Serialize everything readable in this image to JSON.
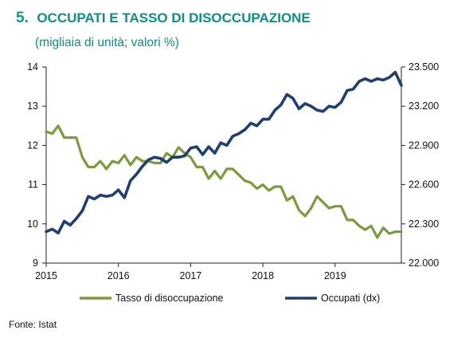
{
  "title_number": "5.",
  "title": "OCCUPATI E TASSO DI DISOCCUPAZIONE",
  "subtitle": "(migliaia di unità; valori %)",
  "source": "Fonte: Istat",
  "colors": {
    "unemployment": "#7a9a3c",
    "employed": "#1f3f73",
    "title": "#0b8f86"
  },
  "chart_data": {
    "type": "line",
    "x_tick_labels": [
      "2015",
      "2016",
      "2017",
      "2018",
      "2019"
    ],
    "xlim": [
      "2015-01",
      "2019-12"
    ],
    "left_axis": {
      "ylim": [
        9,
        14
      ],
      "ticks": [
        9,
        10,
        11,
        12,
        13,
        14
      ],
      "tick_labels": [
        "9",
        "10",
        "11",
        "12",
        "13",
        "14"
      ]
    },
    "right_axis": {
      "ylim": [
        22000,
        23500
      ],
      "ticks": [
        22000,
        22300,
        22600,
        22900,
        23200,
        23500
      ],
      "tick_labels": [
        "22.000",
        "22.300",
        "22.600",
        "22.900",
        "23.200",
        "23.500"
      ]
    },
    "legend_placement": "bottom",
    "grid": false,
    "x": [
      "2015-01",
      "2015-02",
      "2015-03",
      "2015-04",
      "2015-05",
      "2015-06",
      "2015-07",
      "2015-08",
      "2015-09",
      "2015-10",
      "2015-11",
      "2015-12",
      "2016-01",
      "2016-02",
      "2016-03",
      "2016-04",
      "2016-05",
      "2016-06",
      "2016-07",
      "2016-08",
      "2016-09",
      "2016-10",
      "2016-11",
      "2016-12",
      "2017-01",
      "2017-02",
      "2017-03",
      "2017-04",
      "2017-05",
      "2017-06",
      "2017-07",
      "2017-08",
      "2017-09",
      "2017-10",
      "2017-11",
      "2017-12",
      "2018-01",
      "2018-02",
      "2018-03",
      "2018-04",
      "2018-05",
      "2018-06",
      "2018-07",
      "2018-08",
      "2018-09",
      "2018-10",
      "2018-11",
      "2018-12",
      "2019-01",
      "2019-02",
      "2019-03",
      "2019-04",
      "2019-05",
      "2019-06",
      "2019-07",
      "2019-08",
      "2019-09",
      "2019-10",
      "2019-11",
      "2019-12"
    ],
    "series": [
      {
        "name": "Tasso di disoccupazione",
        "axis": "left",
        "values": [
          12.35,
          12.3,
          12.5,
          12.2,
          12.2,
          12.2,
          11.7,
          11.45,
          11.45,
          11.6,
          11.4,
          11.6,
          11.55,
          11.75,
          11.5,
          11.7,
          11.6,
          11.6,
          11.55,
          11.55,
          11.8,
          11.7,
          11.95,
          11.8,
          11.7,
          11.45,
          11.45,
          11.15,
          11.35,
          11.15,
          11.4,
          11.4,
          11.25,
          11.1,
          11.05,
          10.9,
          11.0,
          10.85,
          10.95,
          10.95,
          10.6,
          10.7,
          10.35,
          10.2,
          10.4,
          10.7,
          10.55,
          10.4,
          10.45,
          10.45,
          10.1,
          10.1,
          9.95,
          9.85,
          9.95,
          9.65,
          9.9,
          9.75,
          9.8,
          9.8
        ]
      },
      {
        "name": "Occupati (dx)",
        "axis": "right",
        "values": [
          22240,
          22260,
          22230,
          22320,
          22290,
          22340,
          22400,
          22510,
          22490,
          22520,
          22510,
          22520,
          22560,
          22500,
          22630,
          22680,
          22740,
          22790,
          22810,
          22800,
          22770,
          22810,
          22810,
          22820,
          22880,
          22890,
          22830,
          22890,
          22840,
          22920,
          22900,
          22970,
          22990,
          23020,
          23070,
          23050,
          23100,
          23100,
          23170,
          23210,
          23290,
          23260,
          23180,
          23220,
          23200,
          23170,
          23160,
          23200,
          23190,
          23230,
          23320,
          23330,
          23390,
          23410,
          23390,
          23410,
          23400,
          23420,
          23460,
          23360
        ]
      }
    ]
  }
}
